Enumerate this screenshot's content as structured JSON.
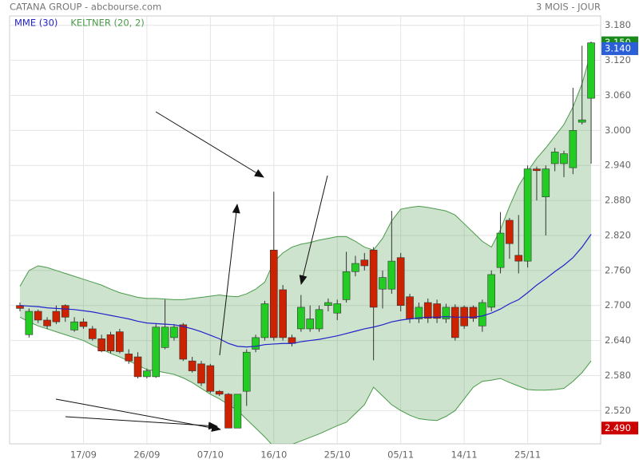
{
  "header": {
    "title": "CATANA GROUP - abcbourse.com",
    "period": "3 MOIS - JOUR"
  },
  "chart_data": {
    "type": "candlestick",
    "categories": [
      null,
      null,
      null,
      null,
      null,
      null,
      null,
      "17/09",
      null,
      null,
      null,
      null,
      null,
      null,
      "26/09",
      null,
      null,
      null,
      null,
      null,
      null,
      "07/10",
      null,
      null,
      null,
      null,
      null,
      null,
      "16/10",
      null,
      null,
      null,
      null,
      null,
      null,
      "25/10",
      null,
      null,
      null,
      null,
      null,
      null,
      "05/11",
      null,
      null,
      null,
      null,
      null,
      null,
      "14/11",
      null,
      null,
      null,
      null,
      null,
      null,
      "25/11",
      null,
      null,
      null,
      null,
      null,
      null,
      null
    ],
    "open": [
      2.7,
      2.65,
      2.69,
      2.675,
      2.69,
      2.7,
      2.658,
      2.672,
      2.66,
      2.643,
      2.65,
      2.655,
      2.617,
      2.612,
      2.578,
      2.578,
      2.628,
      2.645,
      2.667,
      2.605,
      2.6,
      2.597,
      2.553,
      2.548,
      2.49,
      2.553,
      2.625,
      2.645,
      2.795,
      2.727,
      2.645,
      2.66,
      2.66,
      2.66,
      2.7,
      2.687,
      2.71,
      2.758,
      2.778,
      2.795,
      2.728,
      2.728,
      2.782,
      2.715,
      2.677,
      2.705,
      2.703,
      2.677,
      2.697,
      2.697,
      2.697,
      2.665,
      2.697,
      2.765,
      2.846,
      2.786,
      2.776,
      2.934,
      2.886,
      2.943,
      2.943,
      2.936,
      3.014,
      3.055
    ],
    "high": [
      2.705,
      2.695,
      2.693,
      2.68,
      2.7,
      2.702,
      2.68,
      2.678,
      2.665,
      2.65,
      2.655,
      2.66,
      2.625,
      2.62,
      2.592,
      2.668,
      2.71,
      2.668,
      2.67,
      2.612,
      2.605,
      2.6,
      2.555,
      2.55,
      2.548,
      2.625,
      2.65,
      2.708,
      2.895,
      2.735,
      2.65,
      2.718,
      2.7,
      2.7,
      2.712,
      2.71,
      2.792,
      2.785,
      2.79,
      2.8,
      2.76,
      2.862,
      2.79,
      2.72,
      2.705,
      2.712,
      2.71,
      2.703,
      2.702,
      2.7,
      2.7,
      2.71,
      2.76,
      2.86,
      2.85,
      2.855,
      2.94,
      2.938,
      2.94,
      2.97,
      2.965,
      3.073,
      3.145,
      3.152
    ],
    "low": [
      2.69,
      2.645,
      2.67,
      2.66,
      2.668,
      2.672,
      2.655,
      2.66,
      2.64,
      2.62,
      2.618,
      2.618,
      2.6,
      2.575,
      2.575,
      2.576,
      2.625,
      2.64,
      2.605,
      2.585,
      2.562,
      2.55,
      2.545,
      2.49,
      2.49,
      2.528,
      2.62,
      2.64,
      2.64,
      2.64,
      2.63,
      2.655,
      2.655,
      2.655,
      2.69,
      2.675,
      2.705,
      2.75,
      2.76,
      2.606,
      2.695,
      2.72,
      2.69,
      2.67,
      2.67,
      2.67,
      2.67,
      2.67,
      2.64,
      2.66,
      2.672,
      2.655,
      2.69,
      2.755,
      2.78,
      2.755,
      2.765,
      2.88,
      2.82,
      2.93,
      2.92,
      2.925,
      3.01,
      2.943
    ],
    "close": [
      2.695,
      2.69,
      2.675,
      2.665,
      2.672,
      2.68,
      2.672,
      2.664,
      2.643,
      2.622,
      2.622,
      2.621,
      2.605,
      2.578,
      2.588,
      2.663,
      2.663,
      2.663,
      2.608,
      2.588,
      2.567,
      2.553,
      2.548,
      2.49,
      2.548,
      2.62,
      2.645,
      2.703,
      2.645,
      2.645,
      2.635,
      2.697,
      2.677,
      2.693,
      2.705,
      2.703,
      2.758,
      2.772,
      2.768,
      2.697,
      2.748,
      2.776,
      2.7,
      2.677,
      2.697,
      2.678,
      2.678,
      2.697,
      2.645,
      2.665,
      2.678,
      2.705,
      2.753,
      2.824,
      2.806,
      2.776,
      2.934,
      2.931,
      2.934,
      2.963,
      2.96,
      3.0,
      3.018,
      3.15
    ],
    "up_color": "#22cc22",
    "down_color": "#cc2200",
    "series": [
      {
        "name": "MME (30)",
        "color": "#2222cc",
        "values": [
          2.7,
          2.699,
          2.698,
          2.696,
          2.695,
          2.694,
          2.693,
          2.691,
          2.689,
          2.686,
          2.683,
          2.68,
          2.677,
          2.673,
          2.67,
          2.669,
          2.668,
          2.667,
          2.664,
          2.66,
          2.655,
          2.649,
          2.643,
          2.635,
          2.63,
          2.629,
          2.63,
          2.633,
          2.634,
          2.635,
          2.635,
          2.638,
          2.64,
          2.642,
          2.645,
          2.648,
          2.652,
          2.656,
          2.66,
          2.663,
          2.667,
          2.672,
          2.675,
          2.677,
          2.679,
          2.68,
          2.68,
          2.681,
          2.68,
          2.68,
          2.68,
          2.682,
          2.687,
          2.694,
          2.703,
          2.71,
          2.722,
          2.735,
          2.746,
          2.758,
          2.769,
          2.782,
          2.8,
          2.822
        ]
      },
      {
        "name": "KELTNER (20, 2)",
        "color": "#4a9a4a",
        "upper": [
          2.733,
          2.76,
          2.768,
          2.765,
          2.76,
          2.755,
          2.75,
          2.745,
          2.74,
          2.735,
          2.728,
          2.722,
          2.718,
          2.714,
          2.712,
          2.712,
          2.711,
          2.71,
          2.71,
          2.712,
          2.714,
          2.716,
          2.718,
          2.716,
          2.715,
          2.72,
          2.728,
          2.74,
          2.775,
          2.79,
          2.8,
          2.805,
          2.808,
          2.812,
          2.815,
          2.818,
          2.818,
          2.81,
          2.8,
          2.795,
          2.815,
          2.845,
          2.865,
          2.868,
          2.87,
          2.868,
          2.865,
          2.862,
          2.855,
          2.84,
          2.825,
          2.81,
          2.8,
          2.83,
          2.87,
          2.905,
          2.93,
          2.952,
          2.97,
          2.99,
          3.01,
          3.04,
          3.08,
          3.135
        ],
        "lower": [
          2.68,
          2.672,
          2.665,
          2.66,
          2.655,
          2.65,
          2.645,
          2.64,
          2.632,
          2.625,
          2.618,
          2.612,
          2.605,
          2.598,
          2.59,
          2.588,
          2.585,
          2.582,
          2.576,
          2.568,
          2.558,
          2.548,
          2.54,
          2.53,
          2.52,
          2.505,
          2.49,
          2.475,
          2.458,
          2.458,
          2.462,
          2.468,
          2.474,
          2.48,
          2.487,
          2.494,
          2.5,
          2.515,
          2.53,
          2.56,
          2.545,
          2.53,
          2.52,
          2.512,
          2.506,
          2.504,
          2.503,
          2.51,
          2.52,
          2.54,
          2.56,
          2.57,
          2.572,
          2.575,
          2.568,
          2.562,
          2.556,
          2.555,
          2.555,
          2.556,
          2.558,
          2.57,
          2.585,
          2.605
        ]
      }
    ],
    "ylim": [
      2.463,
      3.196
    ],
    "yticks": [
      {
        "value": 2.52,
        "label": "2.520"
      },
      {
        "value": 2.58,
        "label": "2.580"
      },
      {
        "value": 2.64,
        "label": "2.640"
      },
      {
        "value": 2.7,
        "label": "2.700"
      },
      {
        "value": 2.76,
        "label": "2.760"
      },
      {
        "value": 2.82,
        "label": "2.820"
      },
      {
        "value": 2.88,
        "label": "2.880"
      },
      {
        "value": 2.94,
        "label": "2.940"
      },
      {
        "value": 3.0,
        "label": "3.000"
      },
      {
        "value": 3.06,
        "label": "3.060"
      },
      {
        "value": 3.12,
        "label": "3.120"
      },
      {
        "value": 3.18,
        "label": "3.180"
      }
    ],
    "grid": true,
    "price_flags": [
      {
        "value": 3.15,
        "label": "3.150",
        "color": "#1a8a1a"
      },
      {
        "value": 3.14,
        "label": "3.140",
        "color": "#2a5fd8"
      },
      {
        "value": 2.49,
        "label": "2.490",
        "color": "#cc0000"
      }
    ]
  }
}
